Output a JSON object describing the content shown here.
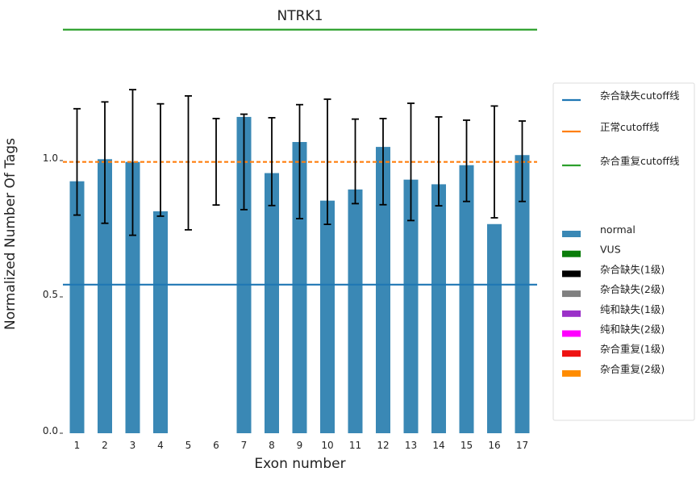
{
  "chart_data": {
    "type": "bar",
    "title": "NTRK1",
    "xlabel": "Exon number",
    "ylabel": "Normalized Number Of Tags",
    "categories": [
      "1",
      "2",
      "3",
      "4",
      "5",
      "6",
      "7",
      "8",
      "9",
      "10",
      "11",
      "12",
      "13",
      "14",
      "15",
      "16",
      "17"
    ],
    "values": [
      0.924,
      1.005,
      0.995,
      0.814,
      null,
      null,
      1.16,
      0.954,
      1.068,
      0.853,
      0.894,
      1.05,
      0.93,
      0.913,
      0.983,
      0.767,
      1.02
    ],
    "error_low": [
      0.8,
      0.77,
      0.726,
      0.796,
      0.746,
      0.837,
      0.82,
      0.835,
      0.787,
      0.766,
      0.842,
      0.838,
      0.78,
      0.834,
      0.85,
      0.79,
      0.85
    ],
    "error_high": [
      1.19,
      1.215,
      1.26,
      1.208,
      1.237,
      1.154,
      1.17,
      1.157,
      1.205,
      1.225,
      1.152,
      1.154,
      1.21,
      1.16,
      1.148,
      1.2,
      1.145
    ],
    "ylim": [
      0,
      1.28
    ],
    "yticks": [
      {
        "value": 0,
        "label": "0.0"
      },
      {
        "value": 0.5,
        "label": "0.5"
      },
      {
        "value": 1.0,
        "label": "1.0"
      }
    ],
    "cutoff_lines": [
      {
        "name": "杂合缺失cutoff线",
        "value": 0.545,
        "color": "#1f77b4",
        "style": "solid"
      },
      {
        "name": "正常cutoff线",
        "value": 0.995,
        "color": "#ff7f0e",
        "style": "dashed"
      },
      {
        "name": "杂合重复cutoff线",
        "value": 1.48,
        "color": "#2ca02c",
        "style": "solid"
      }
    ],
    "bar_color": "#3a88b5",
    "legend_position": "right",
    "legend_lines": [
      {
        "label": "杂合缺失cutoff线",
        "color": "#1f77b4"
      },
      {
        "label": "正常cutoff线",
        "color": "#ff7f0e"
      },
      {
        "label": "杂合重复cutoff线",
        "color": "#2ca02c"
      }
    ],
    "legend_patches": [
      {
        "label": "normal",
        "color": "#3a88b5"
      },
      {
        "label": "VUS",
        "color": "#0a7d0a"
      },
      {
        "label": "杂合缺失(1级)",
        "color": "#000000"
      },
      {
        "label": "杂合缺失(2级)",
        "color": "#808080"
      },
      {
        "label": "纯和缺失(1级)",
        "color": "#9b30c8"
      },
      {
        "label": "纯和缺失(2级)",
        "color": "#ff00ff"
      },
      {
        "label": "杂合重复(1级)",
        "color": "#ee1111"
      },
      {
        "label": "杂合重复(2级)",
        "color": "#ff8c00"
      }
    ]
  }
}
